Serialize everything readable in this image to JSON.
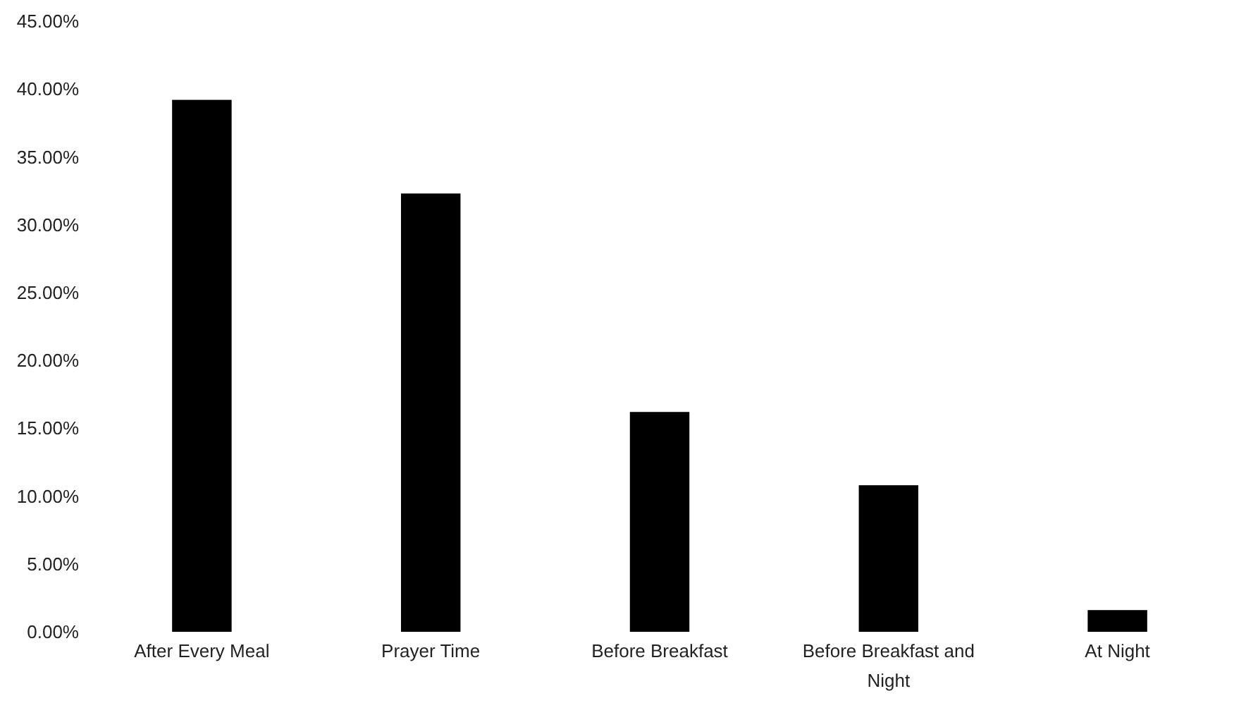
{
  "chart_data": {
    "type": "bar",
    "categories": [
      "After Every Meal",
      "Prayer Time",
      "Before Breakfast",
      "Before Breakfast and Night",
      "At Night"
    ],
    "values": [
      39.2,
      32.3,
      16.2,
      10.8,
      1.6
    ],
    "color": "#000000",
    "ylim": [
      0,
      45
    ],
    "yticks": [
      {
        "value": 0,
        "label": "0.00%"
      },
      {
        "value": 5,
        "label": "5.00%"
      },
      {
        "value": 10,
        "label": "10.00%"
      },
      {
        "value": 15,
        "label": "15.00%"
      },
      {
        "value": 20,
        "label": "20.00%"
      },
      {
        "value": 25,
        "label": "25.00%"
      },
      {
        "value": 30,
        "label": "30.00%"
      },
      {
        "value": 35,
        "label": "35.00%"
      },
      {
        "value": 40,
        "label": "40.00%"
      },
      {
        "value": 45,
        "label": "45.00%"
      }
    ],
    "grid": false
  }
}
